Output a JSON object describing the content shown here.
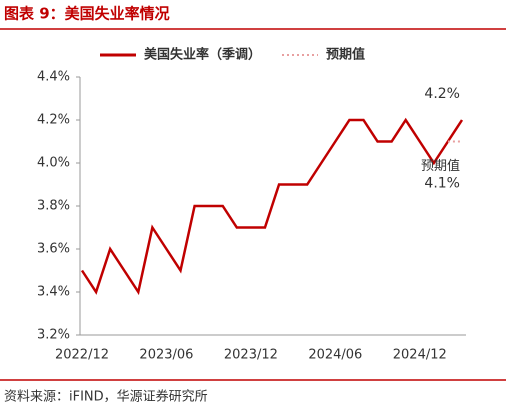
{
  "header": {
    "title": "图表 9：美国失业率情况"
  },
  "chart_data": {
    "type": "line",
    "categories": [
      "2022/12",
      null,
      null,
      null,
      null,
      null,
      "2023/06",
      null,
      null,
      null,
      null,
      null,
      "2023/12",
      null,
      null,
      null,
      null,
      null,
      "2024/06",
      null,
      null,
      null,
      null,
      null,
      "2024/12",
      null,
      null,
      null
    ],
    "series": [
      {
        "name": "美国失业率（季调）",
        "color": "#c00000",
        "style": "solid",
        "values": [
          3.5,
          3.4,
          3.6,
          3.5,
          3.4,
          3.7,
          3.6,
          3.5,
          3.8,
          3.8,
          3.8,
          3.7,
          3.7,
          3.7,
          3.9,
          3.9,
          3.9,
          4.0,
          4.1,
          4.2,
          4.2,
          4.1,
          4.1,
          4.2,
          4.1,
          4.0,
          4.1,
          4.2
        ],
        "value_labels": [
          null,
          null,
          null,
          null,
          null,
          null,
          null,
          null,
          null,
          null,
          null,
          null,
          null,
          null,
          null,
          null,
          null,
          null,
          null,
          null,
          null,
          null,
          null,
          null,
          null,
          null,
          null,
          "4.2%"
        ]
      },
      {
        "name": "预期值",
        "color": "#e8a0a0",
        "style": "dotted",
        "values": [
          null,
          null,
          null,
          null,
          null,
          null,
          null,
          null,
          null,
          null,
          null,
          null,
          null,
          null,
          null,
          null,
          null,
          null,
          null,
          null,
          null,
          null,
          null,
          null,
          null,
          null,
          4.1,
          4.1
        ],
        "value_labels": [
          null,
          null,
          null,
          null,
          null,
          null,
          null,
          null,
          null,
          null,
          null,
          null,
          null,
          null,
          null,
          null,
          null,
          null,
          null,
          null,
          null,
          null,
          null,
          null,
          null,
          null,
          null,
          "4.1%"
        ]
      }
    ],
    "annotation": "预期值",
    "ylim": [
      3.2,
      4.4
    ],
    "yticks": [
      {
        "value": 3.2,
        "label": "3.2%"
      },
      {
        "value": 3.4,
        "label": "3.4%"
      },
      {
        "value": 3.6,
        "label": "3.6%"
      },
      {
        "value": 3.8,
        "label": "3.8%"
      },
      {
        "value": 4.0,
        "label": "4.0%"
      },
      {
        "value": 4.2,
        "label": "4.2%"
      },
      {
        "value": 4.4,
        "label": "4.4%"
      }
    ],
    "grid": false,
    "legend": "top"
  },
  "footer": {
    "source": "资料来源：iFIND，华源证券研究所"
  }
}
